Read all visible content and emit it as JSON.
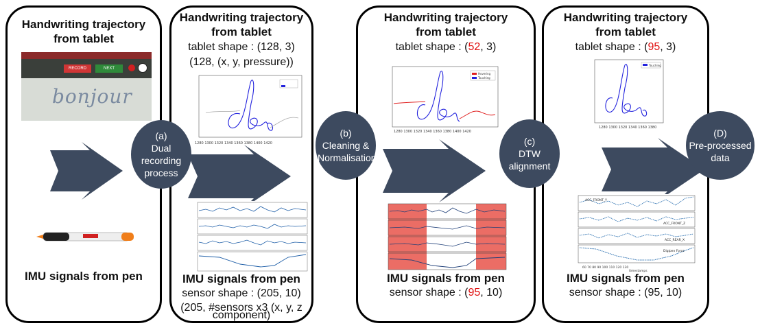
{
  "panel1": {
    "title_line1": "Handwriting trajectory",
    "title_line2": "from tablet",
    "imu_title": "IMU signals from pen",
    "tablet_text": "bonjour",
    "button_left": "RECORD",
    "button_right": "NEXT"
  },
  "panel2": {
    "title_line1": "Handwriting trajectory",
    "title_line2": "from tablet",
    "tablet_shape_prefix": "tablet shape :  (128, 3)",
    "tablet_shape_detail": "(128, (x, y, pressure))",
    "imu_title": "IMU signals from pen",
    "sensor_shape": "sensor shape :  (205, 10)",
    "sensor_detail_1": "(205, #sensors x3 (x, y, z",
    "sensor_detail_2": "component)"
  },
  "panel3": {
    "title_line1": "Handwriting trajectory",
    "title_line2": "from tablet",
    "tablet_shape_a": "tablet shape :  (",
    "tablet_shape_red": "52",
    "tablet_shape_b": ", 3)",
    "imu_title": "IMU signals from pen",
    "sensor_shape_a": "sensor shape :  (",
    "sensor_shape_red": "95",
    "sensor_shape_b": ", 10)",
    "legend": [
      "Hovering",
      "Touching"
    ]
  },
  "panel4": {
    "title_line1": "Handwriting trajectory",
    "title_line2": "from tablet",
    "tablet_shape_a": "tablet shape :  (",
    "tablet_shape_red": "95",
    "tablet_shape_b": ", 3)",
    "imu_title": "IMU signals from pen",
    "sensor_shape": "sensor shape :  (95, 10)",
    "legend": [
      "Touching"
    ],
    "imu_legend": [
      "ACC_FRONT_Y",
      "ACC_FRONT_Z",
      "ACC_REAR_X",
      "Digipen Force"
    ],
    "imu_xlabel": "timestamps"
  },
  "steps": [
    {
      "label": "(a)",
      "text": "Dual recording process"
    },
    {
      "label": "(b)",
      "text": "Cleaning & Normalisation"
    },
    {
      "label": "(c)",
      "text": "DTW alignment"
    },
    {
      "label": "(D)",
      "text": "Pre-processed data"
    }
  ],
  "colors": {
    "circle": "#3d4a5f",
    "arrow": "#3d4a5f",
    "red": "#e01010",
    "blue": "#2222dd",
    "highlight": "#e8544a"
  }
}
